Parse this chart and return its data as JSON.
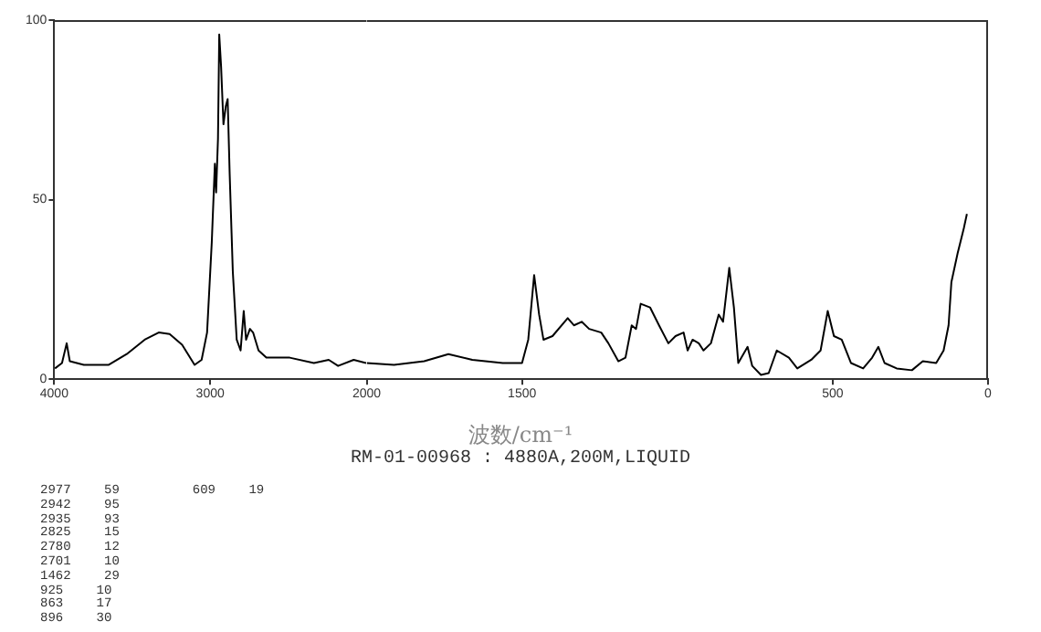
{
  "chart_data": [
    {
      "type": "line",
      "xlim": [
        4000,
        2000
      ],
      "xticks": [
        4000,
        3000
      ],
      "ylim": [
        0,
        100
      ],
      "yticks": [
        0,
        50,
        100
      ],
      "grid": false,
      "legend": false,
      "marker": "none",
      "line_style": "solid",
      "series": [
        {
          "color": "#000000",
          "x": [
            3995,
            3950,
            3920,
            3900,
            3810,
            3650,
            3535,
            3420,
            3330,
            3260,
            3180,
            3100,
            3055,
            3020,
            2990,
            2970,
            2962,
            2950,
            2942,
            2930,
            2915,
            2900,
            2888,
            2875,
            2855,
            2830,
            2805,
            2785,
            2770,
            2745,
            2725,
            2690,
            2640,
            2490,
            2335,
            2240,
            2180,
            2080,
            2000
          ],
          "values": [
            3,
            4.5,
            10,
            5,
            4,
            4,
            7,
            11,
            13,
            12.6,
            9.6,
            4,
            5.4,
            13,
            38,
            60,
            52,
            67,
            96,
            87,
            71,
            76,
            78,
            57,
            30,
            11,
            8,
            19,
            11,
            14,
            13,
            8,
            6,
            6,
            4.5,
            5.4,
            3.7,
            5.4,
            4.5
          ]
        }
      ]
    },
    {
      "type": "line",
      "xlabel": "波数/cm⁻¹",
      "annotations": [
        "RM-01-00968 : 4880A,200M,LIQUID",
        "2977 59",
        "2942 95",
        "2935 93",
        "2825 15",
        "2780 12",
        "2701 10",
        "1462 29",
        "925 10",
        "863 17",
        "896 30",
        "609 19"
      ],
      "xlim": [
        2000,
        0
      ],
      "xticks": [
        2000,
        1500,
        500,
        0
      ],
      "ylim": [
        0,
        100
      ],
      "tick_labels": "x",
      "grid": false,
      "legend": false,
      "marker": "none",
      "line_style": "solid",
      "series": [
        {
          "color": "#000000",
          "x": [
            2000,
            1912,
            1815,
            1737,
            1660,
            1562,
            1513,
            1500,
            1480,
            1461,
            1445,
            1431,
            1402,
            1353,
            1333,
            1308,
            1284,
            1245,
            1222,
            1190,
            1167,
            1147,
            1133,
            1118,
            1088,
            1059,
            1029,
            1006,
            980,
            967,
            951,
            931,
            916,
            892,
            867,
            853,
            833,
            818,
            804,
            774,
            759,
            731,
            706,
            680,
            641,
            614,
            569,
            539,
            516,
            496,
            471,
            441,
            402,
            373,
            353,
            333,
            294,
            245,
            210,
            167,
            143,
            127,
            118,
            98,
            78,
            68
          ],
          "values": [
            4.5,
            4,
            5,
            7,
            5.4,
            4.5,
            4.5,
            4.5,
            11,
            29,
            18,
            11,
            12,
            17,
            15,
            16,
            14,
            13,
            10,
            5,
            6,
            15,
            14,
            21,
            20,
            15,
            10,
            12,
            13,
            8,
            11,
            10,
            8,
            10,
            18,
            16,
            31,
            20,
            4.5,
            9,
            3.7,
            1.2,
            1.7,
            8,
            6,
            3,
            5.4,
            8,
            19,
            12,
            11,
            4.5,
            3,
            6,
            9,
            4.5,
            3,
            2.5,
            5,
            4.5,
            8,
            15,
            27,
            35,
            42,
            46
          ]
        }
      ]
    }
  ]
}
